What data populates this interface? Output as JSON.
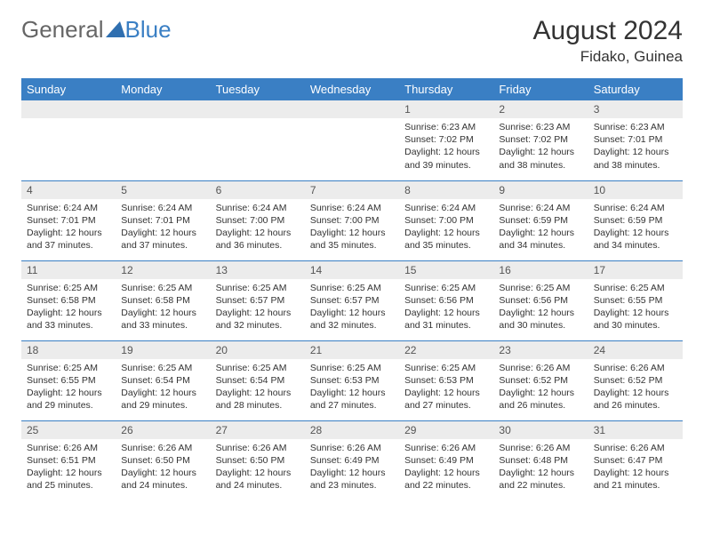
{
  "header": {
    "logo_general": "General",
    "logo_blue": "Blue",
    "month_title": "August 2024",
    "location": "Fidako, Guinea",
    "logo_color": "#3a7fc4",
    "text_color": "#666666"
  },
  "calendar": {
    "header_bg": "#3a7fc4",
    "header_fg": "#ffffff",
    "daynum_bg": "#ececec",
    "border_color": "#3a7fc4",
    "day_headers": [
      "Sunday",
      "Monday",
      "Tuesday",
      "Wednesday",
      "Thursday",
      "Friday",
      "Saturday"
    ],
    "weeks": [
      [
        null,
        null,
        null,
        null,
        {
          "n": "1",
          "sunrise": "Sunrise: 6:23 AM",
          "sunset": "Sunset: 7:02 PM",
          "d1": "Daylight: 12 hours",
          "d2": "and 39 minutes."
        },
        {
          "n": "2",
          "sunrise": "Sunrise: 6:23 AM",
          "sunset": "Sunset: 7:02 PM",
          "d1": "Daylight: 12 hours",
          "d2": "and 38 minutes."
        },
        {
          "n": "3",
          "sunrise": "Sunrise: 6:23 AM",
          "sunset": "Sunset: 7:01 PM",
          "d1": "Daylight: 12 hours",
          "d2": "and 38 minutes."
        }
      ],
      [
        {
          "n": "4",
          "sunrise": "Sunrise: 6:24 AM",
          "sunset": "Sunset: 7:01 PM",
          "d1": "Daylight: 12 hours",
          "d2": "and 37 minutes."
        },
        {
          "n": "5",
          "sunrise": "Sunrise: 6:24 AM",
          "sunset": "Sunset: 7:01 PM",
          "d1": "Daylight: 12 hours",
          "d2": "and 37 minutes."
        },
        {
          "n": "6",
          "sunrise": "Sunrise: 6:24 AM",
          "sunset": "Sunset: 7:00 PM",
          "d1": "Daylight: 12 hours",
          "d2": "and 36 minutes."
        },
        {
          "n": "7",
          "sunrise": "Sunrise: 6:24 AM",
          "sunset": "Sunset: 7:00 PM",
          "d1": "Daylight: 12 hours",
          "d2": "and 35 minutes."
        },
        {
          "n": "8",
          "sunrise": "Sunrise: 6:24 AM",
          "sunset": "Sunset: 7:00 PM",
          "d1": "Daylight: 12 hours",
          "d2": "and 35 minutes."
        },
        {
          "n": "9",
          "sunrise": "Sunrise: 6:24 AM",
          "sunset": "Sunset: 6:59 PM",
          "d1": "Daylight: 12 hours",
          "d2": "and 34 minutes."
        },
        {
          "n": "10",
          "sunrise": "Sunrise: 6:24 AM",
          "sunset": "Sunset: 6:59 PM",
          "d1": "Daylight: 12 hours",
          "d2": "and 34 minutes."
        }
      ],
      [
        {
          "n": "11",
          "sunrise": "Sunrise: 6:25 AM",
          "sunset": "Sunset: 6:58 PM",
          "d1": "Daylight: 12 hours",
          "d2": "and 33 minutes."
        },
        {
          "n": "12",
          "sunrise": "Sunrise: 6:25 AM",
          "sunset": "Sunset: 6:58 PM",
          "d1": "Daylight: 12 hours",
          "d2": "and 33 minutes."
        },
        {
          "n": "13",
          "sunrise": "Sunrise: 6:25 AM",
          "sunset": "Sunset: 6:57 PM",
          "d1": "Daylight: 12 hours",
          "d2": "and 32 minutes."
        },
        {
          "n": "14",
          "sunrise": "Sunrise: 6:25 AM",
          "sunset": "Sunset: 6:57 PM",
          "d1": "Daylight: 12 hours",
          "d2": "and 32 minutes."
        },
        {
          "n": "15",
          "sunrise": "Sunrise: 6:25 AM",
          "sunset": "Sunset: 6:56 PM",
          "d1": "Daylight: 12 hours",
          "d2": "and 31 minutes."
        },
        {
          "n": "16",
          "sunrise": "Sunrise: 6:25 AM",
          "sunset": "Sunset: 6:56 PM",
          "d1": "Daylight: 12 hours",
          "d2": "and 30 minutes."
        },
        {
          "n": "17",
          "sunrise": "Sunrise: 6:25 AM",
          "sunset": "Sunset: 6:55 PM",
          "d1": "Daylight: 12 hours",
          "d2": "and 30 minutes."
        }
      ],
      [
        {
          "n": "18",
          "sunrise": "Sunrise: 6:25 AM",
          "sunset": "Sunset: 6:55 PM",
          "d1": "Daylight: 12 hours",
          "d2": "and 29 minutes."
        },
        {
          "n": "19",
          "sunrise": "Sunrise: 6:25 AM",
          "sunset": "Sunset: 6:54 PM",
          "d1": "Daylight: 12 hours",
          "d2": "and 29 minutes."
        },
        {
          "n": "20",
          "sunrise": "Sunrise: 6:25 AM",
          "sunset": "Sunset: 6:54 PM",
          "d1": "Daylight: 12 hours",
          "d2": "and 28 minutes."
        },
        {
          "n": "21",
          "sunrise": "Sunrise: 6:25 AM",
          "sunset": "Sunset: 6:53 PM",
          "d1": "Daylight: 12 hours",
          "d2": "and 27 minutes."
        },
        {
          "n": "22",
          "sunrise": "Sunrise: 6:25 AM",
          "sunset": "Sunset: 6:53 PM",
          "d1": "Daylight: 12 hours",
          "d2": "and 27 minutes."
        },
        {
          "n": "23",
          "sunrise": "Sunrise: 6:26 AM",
          "sunset": "Sunset: 6:52 PM",
          "d1": "Daylight: 12 hours",
          "d2": "and 26 minutes."
        },
        {
          "n": "24",
          "sunrise": "Sunrise: 6:26 AM",
          "sunset": "Sunset: 6:52 PM",
          "d1": "Daylight: 12 hours",
          "d2": "and 26 minutes."
        }
      ],
      [
        {
          "n": "25",
          "sunrise": "Sunrise: 6:26 AM",
          "sunset": "Sunset: 6:51 PM",
          "d1": "Daylight: 12 hours",
          "d2": "and 25 minutes."
        },
        {
          "n": "26",
          "sunrise": "Sunrise: 6:26 AM",
          "sunset": "Sunset: 6:50 PM",
          "d1": "Daylight: 12 hours",
          "d2": "and 24 minutes."
        },
        {
          "n": "27",
          "sunrise": "Sunrise: 6:26 AM",
          "sunset": "Sunset: 6:50 PM",
          "d1": "Daylight: 12 hours",
          "d2": "and 24 minutes."
        },
        {
          "n": "28",
          "sunrise": "Sunrise: 6:26 AM",
          "sunset": "Sunset: 6:49 PM",
          "d1": "Daylight: 12 hours",
          "d2": "and 23 minutes."
        },
        {
          "n": "29",
          "sunrise": "Sunrise: 6:26 AM",
          "sunset": "Sunset: 6:49 PM",
          "d1": "Daylight: 12 hours",
          "d2": "and 22 minutes."
        },
        {
          "n": "30",
          "sunrise": "Sunrise: 6:26 AM",
          "sunset": "Sunset: 6:48 PM",
          "d1": "Daylight: 12 hours",
          "d2": "and 22 minutes."
        },
        {
          "n": "31",
          "sunrise": "Sunrise: 6:26 AM",
          "sunset": "Sunset: 6:47 PM",
          "d1": "Daylight: 12 hours",
          "d2": "and 21 minutes."
        }
      ]
    ]
  }
}
